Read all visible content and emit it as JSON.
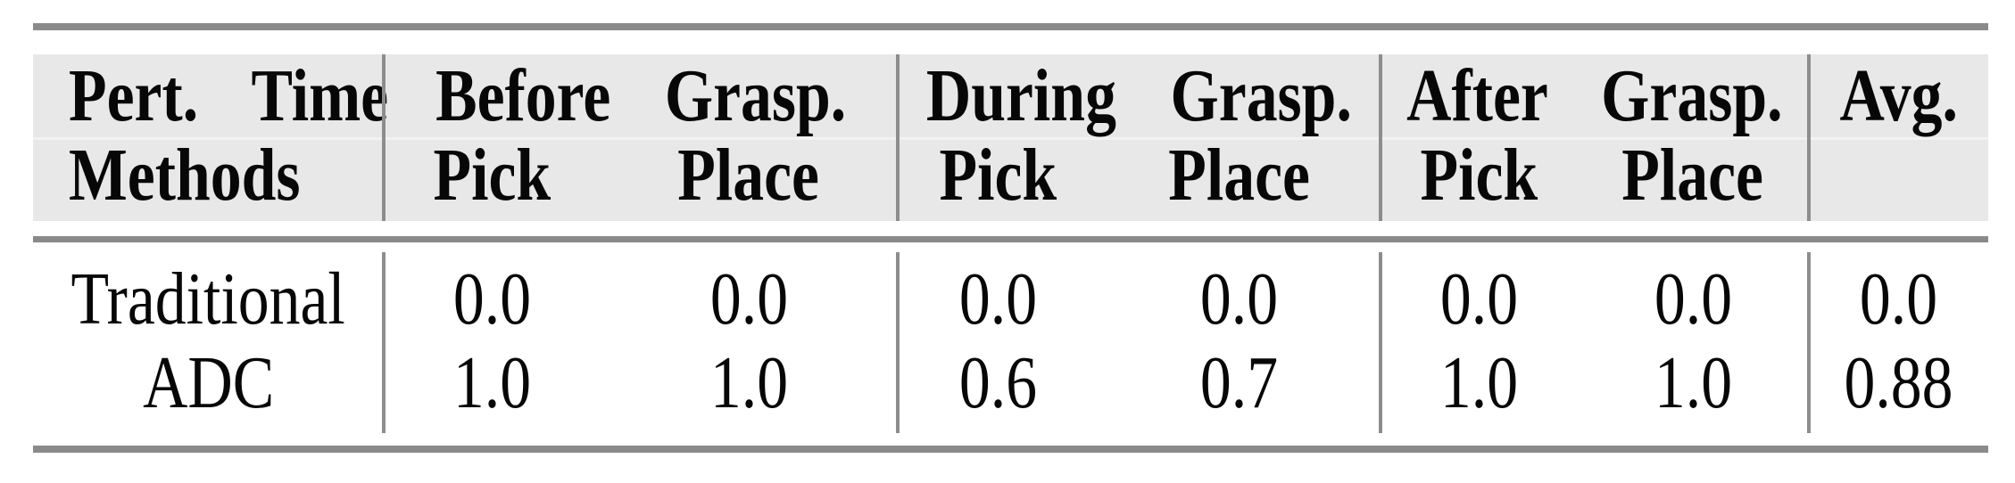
{
  "figure": {
    "type": "academic-results-table",
    "header": {
      "row1": {
        "col_method": "Pert. Time",
        "group_before": "Before Grasp.",
        "group_during": "During Grasp.",
        "group_after": "After Grasp.",
        "col_avg": "Avg."
      },
      "row2": {
        "col_method": "Methods",
        "before_pick": "Pick",
        "before_place": "Place",
        "during_pick": "Pick",
        "during_place": "Place",
        "after_pick": "Pick",
        "after_place": "Place",
        "col_avg": ""
      }
    },
    "rows": [
      {
        "method": "Traditional",
        "before_pick": "0.0",
        "before_place": "0.0",
        "during_pick": "0.0",
        "during_place": "0.0",
        "after_pick": "0.0",
        "after_place": "0.0",
        "avg": "0.0"
      },
      {
        "method": "ADC",
        "before_pick": "1.0",
        "before_place": "1.0",
        "during_pick": "0.6",
        "during_place": "0.7",
        "after_pick": "1.0",
        "after_place": "1.0",
        "avg": "0.88"
      }
    ],
    "colors": {
      "rule_gray": "#8a8a8a",
      "divider_gray": "#8d8d8d",
      "header_bg": "#e8e8e8",
      "text": "#070707",
      "background": "#ffffff"
    }
  },
  "chart_data": {
    "type": "table",
    "columns": [
      "Pert. Time / Methods",
      "Before Grasp. Pick",
      "Before Grasp. Place",
      "During Grasp. Pick",
      "During Grasp. Place",
      "After Grasp. Pick",
      "After Grasp. Place",
      "Avg."
    ],
    "rows": [
      [
        "Traditional",
        0.0,
        0.0,
        0.0,
        0.0,
        0.0,
        0.0,
        0.0
      ],
      [
        "ADC",
        1.0,
        1.0,
        0.6,
        0.7,
        1.0,
        1.0,
        0.88
      ]
    ]
  }
}
